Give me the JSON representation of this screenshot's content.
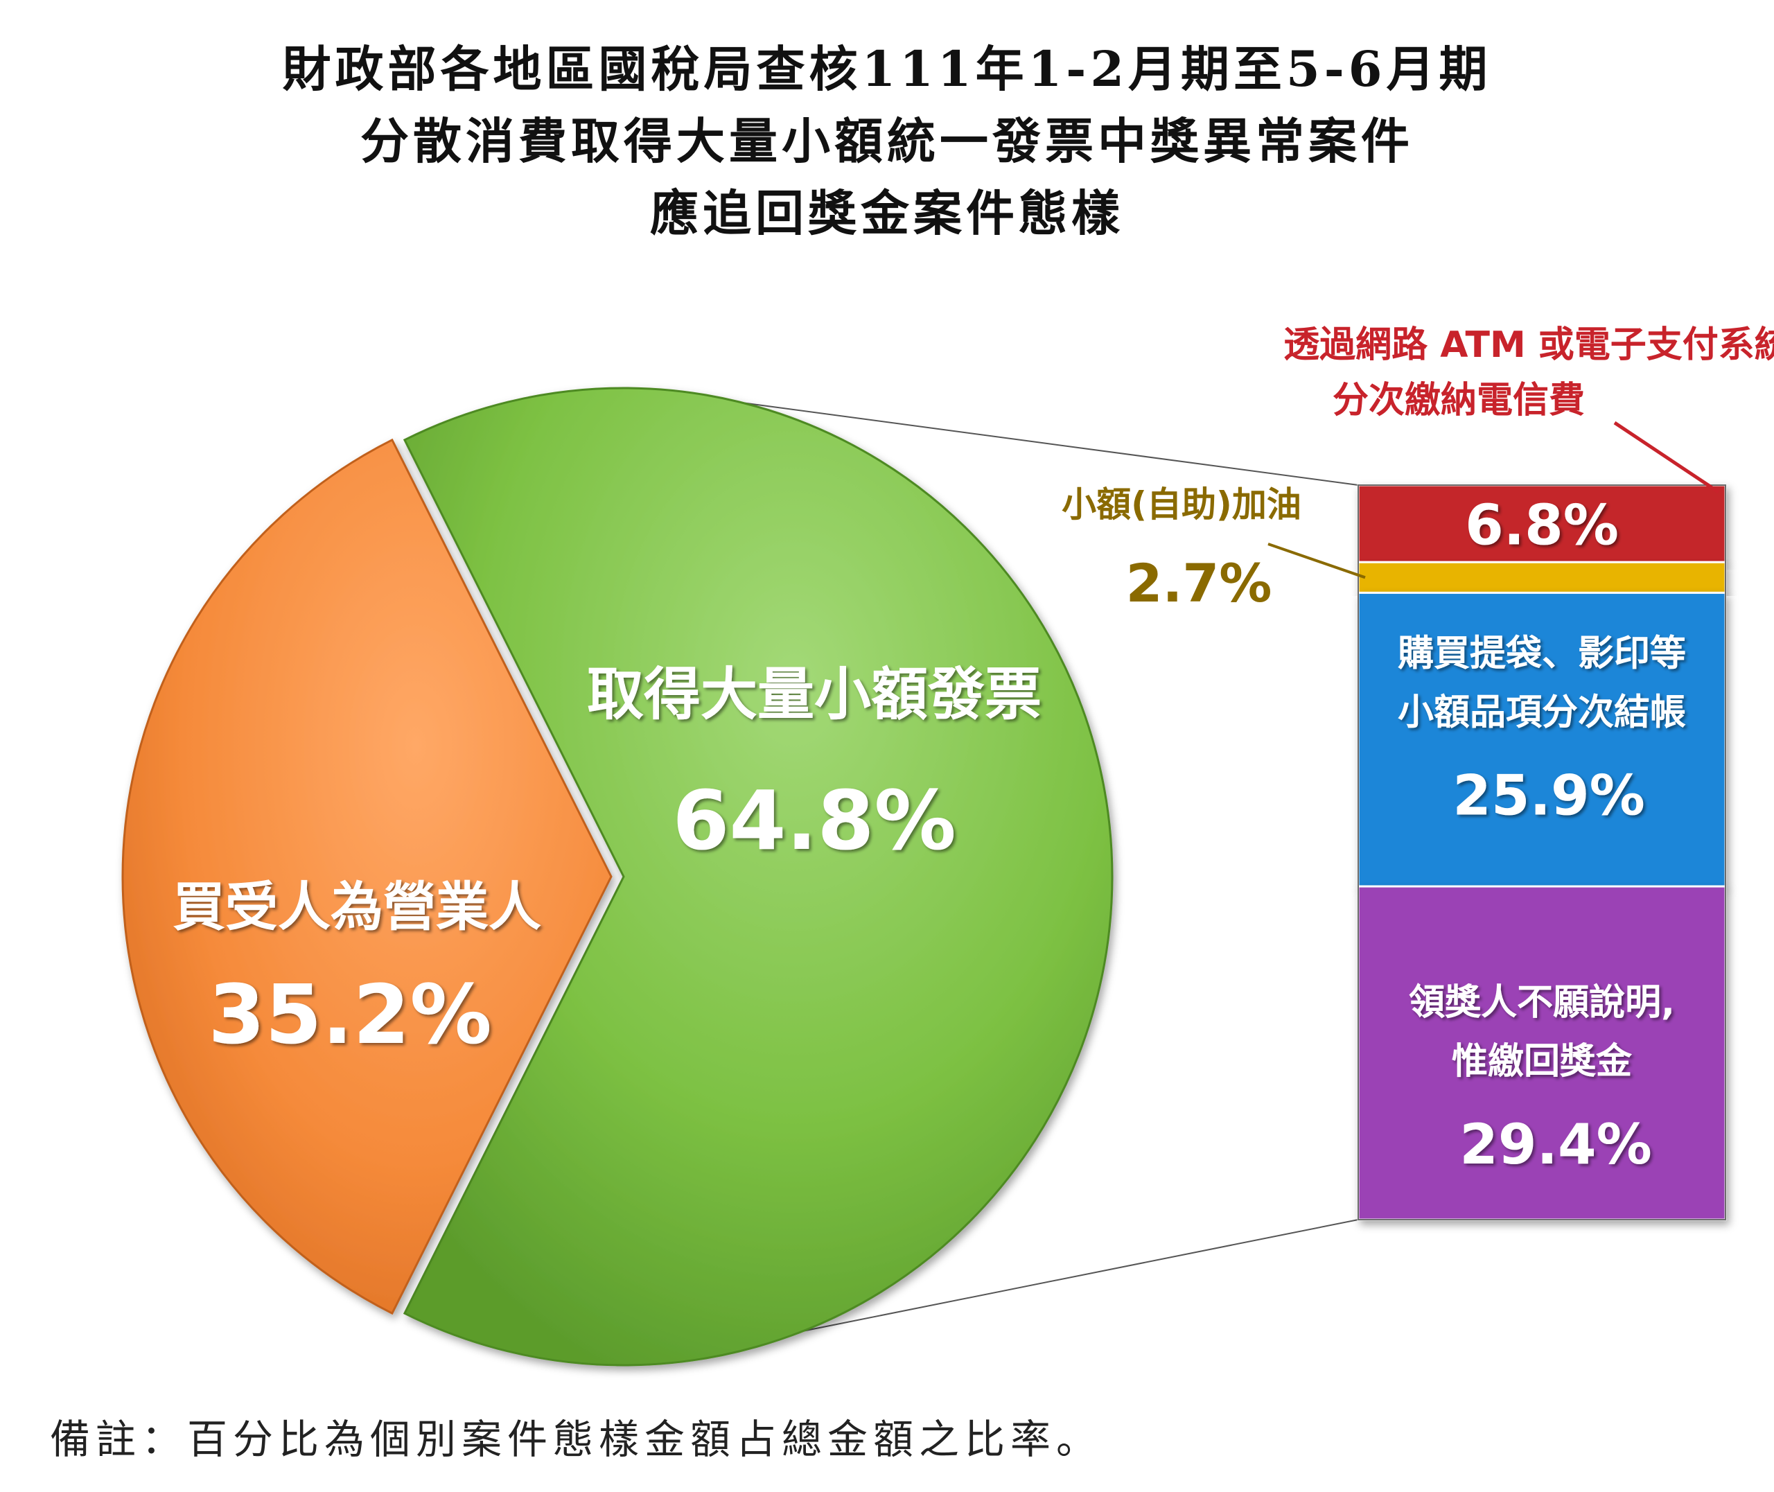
{
  "title_lines": [
    "財政部各地區國稅局查核111年1-2月期至5-6月期",
    "分散消費取得大量小額統一發票中獎異常案件",
    "應追回獎金案件態樣"
  ],
  "note": "備註：百分比為個別案件態樣金額占總金額之比率。",
  "chart_data": {
    "type": "pie",
    "variant": "bar-of-pie",
    "pie": {
      "slices": [
        {
          "label": "取得大量小額發票",
          "value": 64.8,
          "value_label": "64.8%",
          "color": "#7dc143"
        },
        {
          "label": "買受人為營業人",
          "value": 35.2,
          "value_label": "35.2%",
          "color": "#f58a3a"
        }
      ]
    },
    "bar": {
      "exploded_from": "取得大量小額發票",
      "segments": [
        {
          "label_lines": [
            "透過網路 ATM 或電子支付系統",
            "分次繳納電信費"
          ],
          "value": 6.8,
          "value_label": "6.8%",
          "color": "#c4272a",
          "label_color": "#c8232b",
          "label_position": "above-right"
        },
        {
          "label_lines": [
            "小額(自助)加油"
          ],
          "value": 2.7,
          "value_label": "2.7%",
          "color": "#e8b400",
          "label_color": "#8a6a00",
          "label_position": "left"
        },
        {
          "label_lines": [
            "購買提袋、影印等",
            "小額品項分次結帳"
          ],
          "value": 25.9,
          "value_label": "25.9%",
          "color": "#1f86d8",
          "label_color": "#ffffff",
          "label_position": "inside"
        },
        {
          "label_lines": [
            "領獎人不願說明,",
            "惟繳回獎金"
          ],
          "value": 29.4,
          "value_label": "29.4%",
          "color": "#9b42b5",
          "label_color": "#ffffff",
          "label_position": "inside"
        }
      ]
    }
  }
}
